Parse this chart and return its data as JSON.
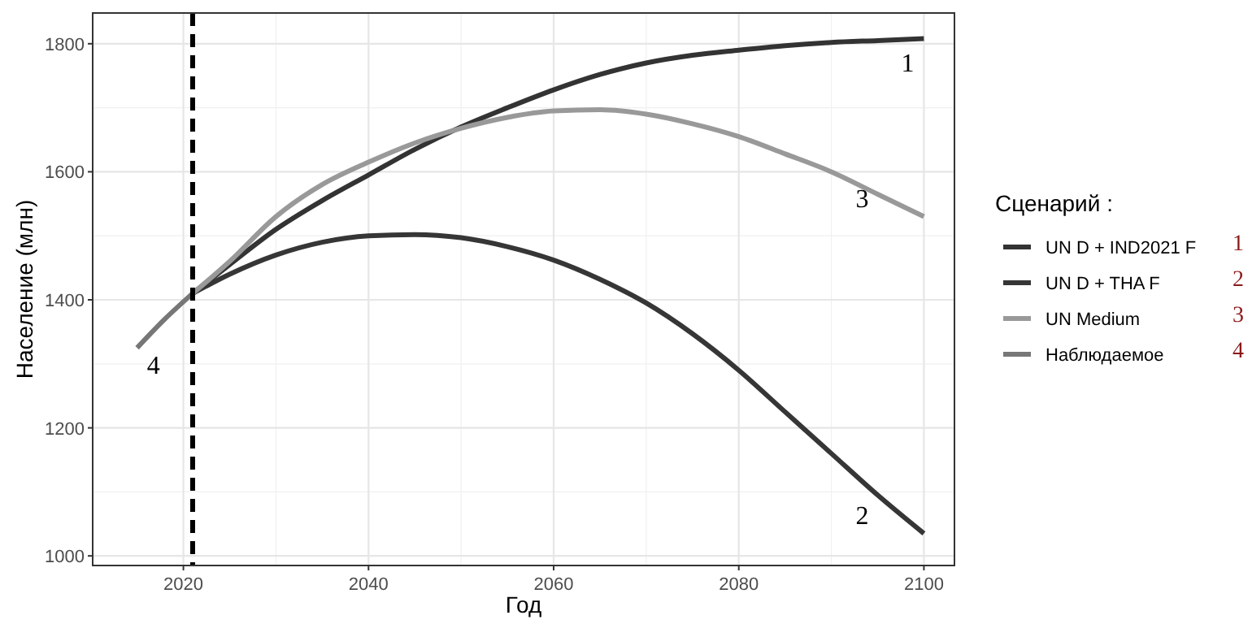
{
  "chart_data": {
    "type": "line",
    "xlabel": "Год",
    "ylabel": "Население (млн)",
    "legend_title": "Сценарий :",
    "legend": "right",
    "grid": true,
    "line_style": "solid",
    "marker": "none",
    "xlim": [
      2010.2,
      2103.3
    ],
    "xticks": [
      2020,
      2040,
      2060,
      2080,
      2100
    ],
    "ylim": [
      985,
      1848
    ],
    "yticks": [
      1000,
      1200,
      1400,
      1600,
      1800
    ],
    "series": [
      {
        "name": "UN D + IND2021 F",
        "color": "#333333",
        "x": [
          2021,
          2025,
          2030,
          2035,
          2040,
          2045,
          2050,
          2055,
          2060,
          2065,
          2070,
          2075,
          2080,
          2085,
          2090,
          2095,
          2100
        ],
        "values": [
          1410,
          1455,
          1510,
          1555,
          1595,
          1635,
          1670,
          1700,
          1728,
          1752,
          1770,
          1782,
          1790,
          1797,
          1802,
          1805,
          1808
        ]
      },
      {
        "name": "UN D + THA F",
        "color": "#363636",
        "x": [
          2021,
          2025,
          2030,
          2035,
          2040,
          2045,
          2050,
          2055,
          2060,
          2065,
          2070,
          2075,
          2080,
          2085,
          2090,
          2095,
          2100
        ],
        "values": [
          1410,
          1440,
          1470,
          1490,
          1500,
          1502,
          1497,
          1483,
          1462,
          1432,
          1395,
          1347,
          1290,
          1225,
          1160,
          1095,
          1035
        ]
      },
      {
        "name": "UN Medium",
        "color": "#999999",
        "x": [
          2021,
          2025,
          2030,
          2035,
          2040,
          2045,
          2050,
          2055,
          2060,
          2065,
          2070,
          2075,
          2080,
          2085,
          2090,
          2095,
          2100
        ],
        "values": [
          1410,
          1460,
          1530,
          1580,
          1615,
          1645,
          1668,
          1685,
          1695,
          1697,
          1690,
          1675,
          1655,
          1628,
          1600,
          1565,
          1530
        ]
      },
      {
        "name": "Наблюдаемое",
        "color": "#777777",
        "x": [
          2015,
          2018,
          2021
        ],
        "values": [
          1325,
          1370,
          1410
        ]
      }
    ],
    "ref_lines": [
      {
        "axis": "x",
        "value": 2021,
        "color": "#000000",
        "line_style": "dashed"
      }
    ],
    "annotations": [
      "1",
      "2",
      "3",
      "4"
    ]
  }
}
